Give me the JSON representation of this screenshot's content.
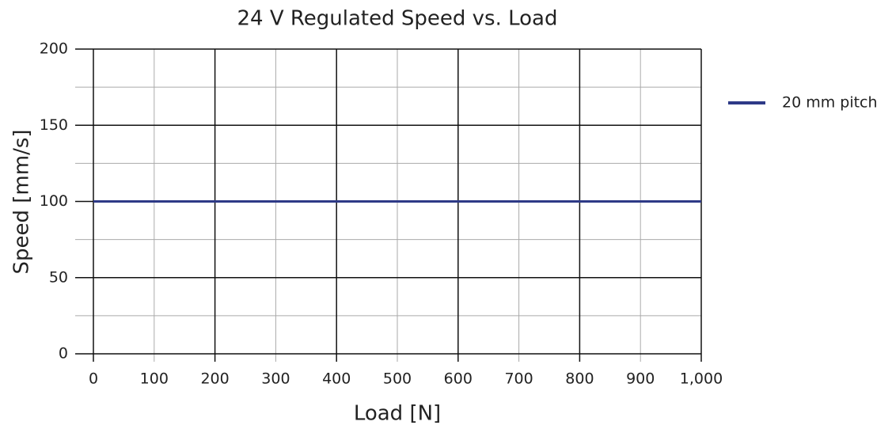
{
  "chart_data": {
    "type": "line",
    "title": "24 V Regulated Speed vs. Load",
    "xlabel": "Load [N]",
    "ylabel": "Speed [mm/s]",
    "x": [
      0,
      1000
    ],
    "series": [
      {
        "name": "20 mm pitch",
        "color": "#2e3a87",
        "values": [
          100,
          100
        ]
      }
    ],
    "xlim": [
      0,
      1000
    ],
    "xticks": [
      0,
      100,
      200,
      300,
      400,
      500,
      600,
      700,
      800,
      900,
      {
        "value": 1000,
        "label": "1,000"
      }
    ],
    "ylim": [
      0,
      200
    ],
    "yticks": [
      0,
      50,
      100,
      150,
      200
    ],
    "yminorticks": [
      25,
      75,
      125,
      175
    ],
    "grid": true,
    "legend": "right"
  }
}
